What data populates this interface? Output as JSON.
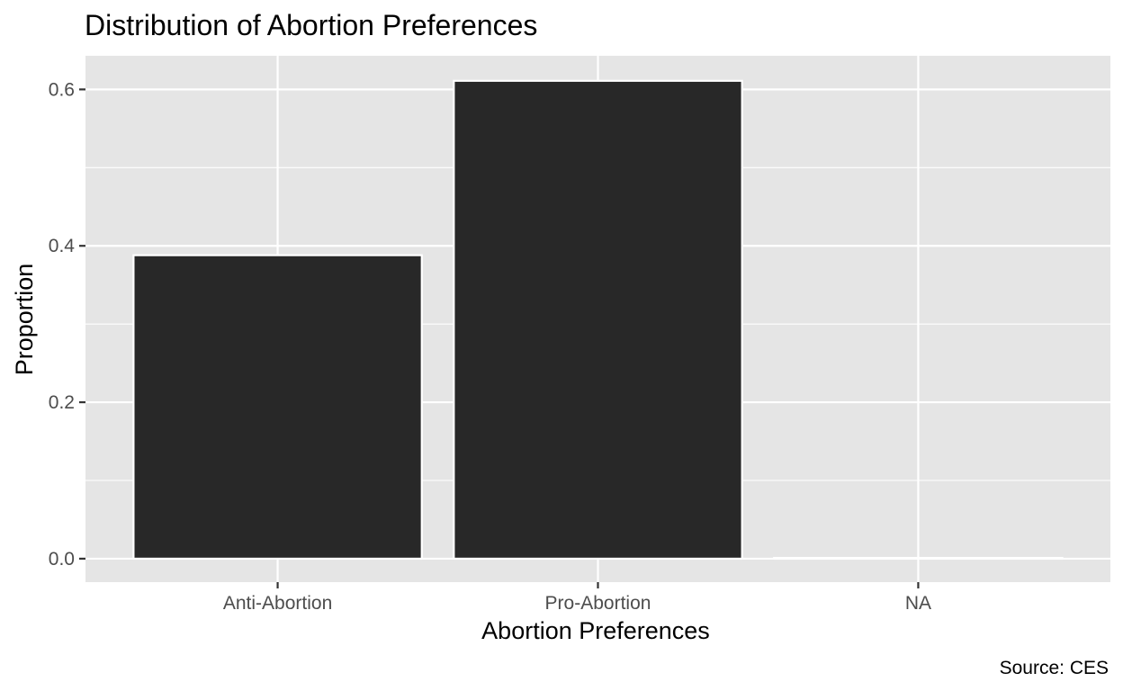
{
  "chart_data": {
    "type": "bar",
    "title": "Distribution of Abortion Preferences",
    "xlabel": "Abortion Preferences",
    "ylabel": "Proportion",
    "caption": "Source: CES",
    "categories": [
      "Anti-Abortion",
      "Pro-Abortion",
      "NA"
    ],
    "values": [
      0.388,
      0.611,
      0.001
    ],
    "ylim": [
      -0.03,
      0.643
    ],
    "yticks": [
      0.0,
      0.2,
      0.4,
      0.6
    ],
    "ytick_labels": [
      "0.0",
      "0.2",
      "0.4",
      "0.6"
    ],
    "grid": true,
    "legend": "none",
    "colors": {
      "panel": "#e5e5e5",
      "grid": "#ffffff",
      "bar_fill": "#282828",
      "bar_outline": "#ffffff",
      "tick_text": "#4d4d4d",
      "tick_mark": "#333333"
    }
  }
}
